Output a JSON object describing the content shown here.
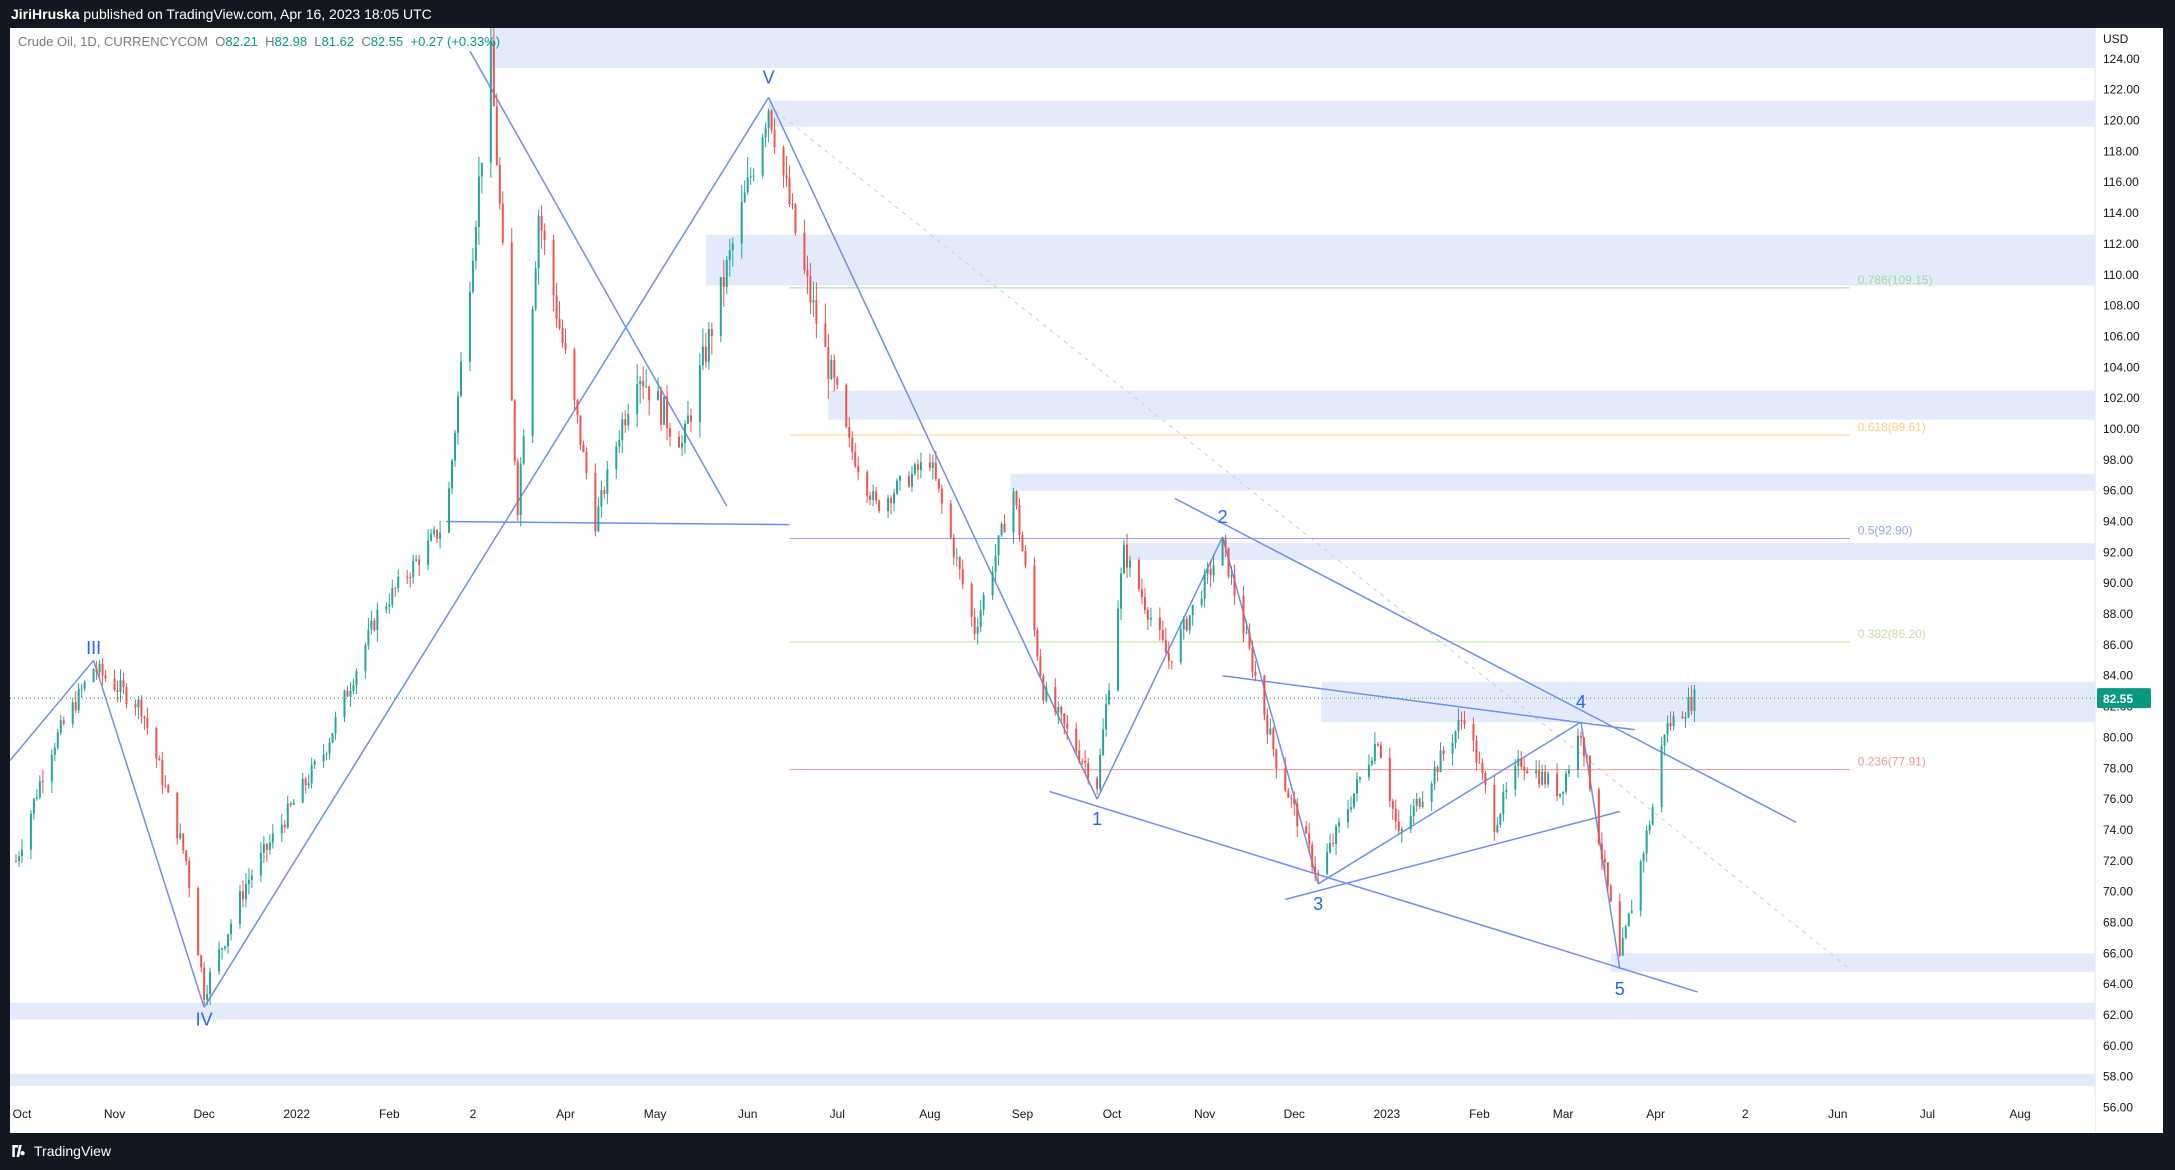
{
  "header": {
    "author": "JiriHruska",
    "published_text": "published on TradingView.com, Apr 16, 2023 18:05 UTC"
  },
  "symbol": {
    "name": "Crude Oil, 1D, CURRENCYCOM",
    "open_key": "O",
    "open": "82.21",
    "high_key": "H",
    "high": "82.98",
    "low_key": "L",
    "low": "81.62",
    "close_key": "C",
    "close": "82.55",
    "change": "+0.27 (+0.33%)"
  },
  "footer": {
    "brand": "TradingView",
    "logo_icon": "tradingview-logo-icon"
  },
  "colors": {
    "up": "#26a69a",
    "down": "#ef5350",
    "line": "#6d8ff0",
    "zone": "#e3ebfb",
    "wave_label": "#2962ff",
    "price_tag": "#089981"
  },
  "chart_data": {
    "type": "candlestick",
    "title": "Crude Oil, 1D, CURRENCYCOM",
    "currency": "USD",
    "ylim": [
      55,
      126
    ],
    "y_ticks": [
      56,
      58,
      60,
      62,
      64,
      66,
      68,
      70,
      72,
      74,
      76,
      78,
      80,
      82,
      84,
      86,
      88,
      90,
      92,
      94,
      96,
      98,
      100,
      102,
      104,
      106,
      108,
      110,
      112,
      114,
      116,
      118,
      120,
      122,
      124
    ],
    "x_ticks": [
      "Oct",
      "Nov",
      "Dec",
      "2022",
      "Feb",
      "2",
      "Apr",
      "May",
      "Jun",
      "Jul",
      "Aug",
      "Sep",
      "Oct",
      "Nov",
      "Dec",
      "2023",
      "Feb",
      "Mar",
      "Apr",
      "2",
      "Jun",
      "Jul",
      "Aug"
    ],
    "last_price": "82.55",
    "price_path": [
      {
        "date": "2021-09-29",
        "price": 72.0
      },
      {
        "date": "2021-10-10",
        "price": 79.0
      },
      {
        "date": "2021-10-25",
        "price": 84.5
      },
      {
        "date": "2021-11-10",
        "price": 82.0
      },
      {
        "date": "2021-11-25",
        "price": 72.0
      },
      {
        "date": "2021-12-01",
        "price": 63.5
      },
      {
        "date": "2021-12-15",
        "price": 70.5
      },
      {
        "date": "2022-01-10",
        "price": 79.0
      },
      {
        "date": "2022-01-28",
        "price": 88.0
      },
      {
        "date": "2022-02-20",
        "price": 94.0
      },
      {
        "date": "2022-03-07",
        "price": 124.0
      },
      {
        "date": "2022-03-16",
        "price": 95.0
      },
      {
        "date": "2022-03-23",
        "price": 114.0
      },
      {
        "date": "2022-04-11",
        "price": 94.0
      },
      {
        "date": "2022-04-25",
        "price": 104.0
      },
      {
        "date": "2022-05-10",
        "price": 99.0
      },
      {
        "date": "2022-06-08",
        "price": 121.0
      },
      {
        "date": "2022-06-20",
        "price": 110.0
      },
      {
        "date": "2022-07-05",
        "price": 99.0
      },
      {
        "date": "2022-07-14",
        "price": 95.0
      },
      {
        "date": "2022-08-01",
        "price": 98.0
      },
      {
        "date": "2022-08-16",
        "price": 87.0
      },
      {
        "date": "2022-08-29",
        "price": 96.0
      },
      {
        "date": "2022-09-08",
        "price": 83.0
      },
      {
        "date": "2022-09-26",
        "price": 77.0
      },
      {
        "date": "2022-10-05",
        "price": 92.0
      },
      {
        "date": "2022-10-20",
        "price": 85.0
      },
      {
        "date": "2022-11-07",
        "price": 92.5
      },
      {
        "date": "2022-11-25",
        "price": 78.5
      },
      {
        "date": "2022-12-09",
        "price": 71.0
      },
      {
        "date": "2022-12-29",
        "price": 80.0
      },
      {
        "date": "2023-01-05",
        "price": 73.5
      },
      {
        "date": "2023-01-27",
        "price": 81.5
      },
      {
        "date": "2023-02-06",
        "price": 74.5
      },
      {
        "date": "2023-02-15",
        "price": 78.5
      },
      {
        "date": "2023-02-28",
        "price": 76.5
      },
      {
        "date": "2023-03-07",
        "price": 80.5
      },
      {
        "date": "2023-03-20",
        "price": 65.5
      },
      {
        "date": "2023-03-31",
        "price": 75.5
      },
      {
        "date": "2023-04-04",
        "price": 80.5
      },
      {
        "date": "2023-04-14",
        "price": 82.55
      }
    ],
    "wave_labels": [
      {
        "text": "III",
        "date": "2021-10-25",
        "price": 84.5,
        "pos": "above"
      },
      {
        "text": "IV",
        "date": "2021-12-01",
        "price": 63.0,
        "pos": "below"
      },
      {
        "text": "V",
        "date": "2022-06-08",
        "price": 121.5,
        "pos": "above"
      },
      {
        "text": "1",
        "date": "2022-09-26",
        "price": 76.0,
        "pos": "below"
      },
      {
        "text": "2",
        "date": "2022-11-07",
        "price": 93.0,
        "pos": "above"
      },
      {
        "text": "3",
        "date": "2022-12-09",
        "price": 70.5,
        "pos": "below"
      },
      {
        "text": "4",
        "date": "2023-03-07",
        "price": 81.0,
        "pos": "above"
      },
      {
        "text": "5",
        "date": "2023-03-20",
        "price": 65.0,
        "pos": "below"
      }
    ],
    "fib_levels": [
      {
        "label": "0.786(109.15)",
        "value": 109.15,
        "color": "#a5d6a7"
      },
      {
        "label": "0.618(99.61)",
        "value": 99.61,
        "color": "#ffcc80"
      },
      {
        "label": "0.5(92.90)",
        "value": 92.9,
        "color": "#90a4ee"
      },
      {
        "label": "0.382(86.20)",
        "value": 86.2,
        "color": "#c5e1a5"
      },
      {
        "label": "0.236(77.91)",
        "value": 77.91,
        "color": "#ef9a9a"
      }
    ],
    "zones": [
      {
        "from": "2022-03-07",
        "to": "end",
        "low": 123.4,
        "high": 126.0
      },
      {
        "from": "2022-06-08",
        "to": "end",
        "low": 119.6,
        "high": 121.3
      },
      {
        "from": "2022-05-18",
        "to": "end",
        "low": 109.3,
        "high": 112.6
      },
      {
        "from": "2022-06-28",
        "to": "end",
        "low": 100.6,
        "high": 102.5
      },
      {
        "from": "2022-08-28",
        "to": "end",
        "low": 96.0,
        "high": 97.1
      },
      {
        "from": "2022-10-06",
        "to": "end",
        "low": 91.5,
        "high": 92.6
      },
      {
        "from": "2022-12-10",
        "to": "end",
        "low": 81.0,
        "high": 83.6
      },
      {
        "from": "2023-03-17",
        "to": "end",
        "low": 64.8,
        "high": 66.0
      },
      {
        "from": "start",
        "to": "end",
        "low": 61.7,
        "high": 62.8
      },
      {
        "from": "start",
        "to": "end",
        "low": 57.4,
        "high": 58.2
      }
    ],
    "legend": "none",
    "grid": false
  }
}
